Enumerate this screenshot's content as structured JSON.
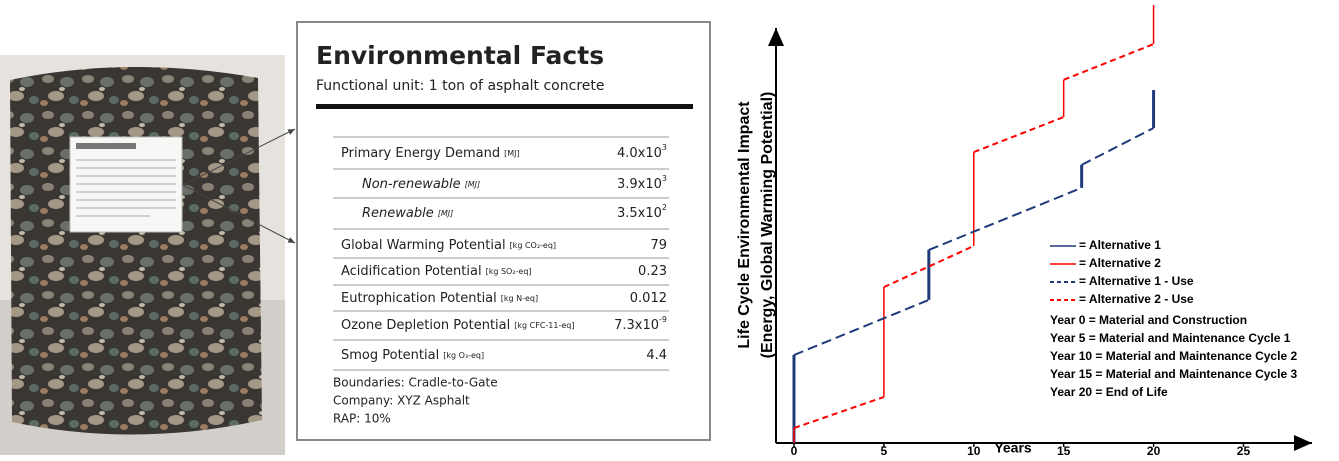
{
  "facts_label": {
    "title": "Environmental Facts",
    "subtitle": "Functional unit: 1 ton of asphalt concrete",
    "rows": [
      {
        "name": "Primary Energy Demand",
        "unit": "[MJ]",
        "value": "4.0x10",
        "exp": "3",
        "indent": false
      },
      {
        "name": "Non-renewable",
        "unit": "[MJ]",
        "value": "3.9x10",
        "exp": "3",
        "indent": true
      },
      {
        "name": "Renewable",
        "unit": "[MJ]",
        "value": "3.5x10",
        "exp": "2",
        "indent": true
      },
      {
        "name": "Global Warming Potential",
        "unit": "[kg CO₂-eq]",
        "value": "79",
        "indent": false
      },
      {
        "name": "Acidification Potential",
        "unit": "[kg SO₂-eq]",
        "value": "0.23",
        "indent": false
      },
      {
        "name": "Eutrophication Potential",
        "unit": "[kg N-eq]",
        "value": "0.012",
        "indent": false
      },
      {
        "name": "Ozone Depletion Potential",
        "unit": "[kg CFC-11-eq]",
        "value": "7.3x10",
        "exp": "-9",
        "indent": false
      },
      {
        "name": "Smog Potential",
        "unit": "[kg O₃-eq]",
        "value": "4.4",
        "indent": false
      }
    ],
    "footer": [
      "Boundaries: Cradle-to-Gate",
      "Company: XYZ Asphalt",
      "RAP: 10%"
    ]
  },
  "chart_data": {
    "type": "line",
    "xlabel": "Years",
    "ylabel": [
      "Life Cycle Environmental Impact",
      "(Energy, Global Warming Potential)"
    ],
    "xlim": [
      -1,
      28.7
    ],
    "xticks": [
      0,
      5,
      10,
      15,
      20,
      25
    ],
    "ylim": [
      0,
      120
    ],
    "series": [
      {
        "name": "= Alternative 1",
        "color": "#1f3a7a",
        "dash": false,
        "x": [
          0,
          0,
          null,
          7.5,
          7.5,
          null,
          16,
          16,
          null,
          20,
          20
        ],
        "values": [
          0,
          24.1,
          null,
          39.2,
          52.9,
          null,
          69.9,
          76.2,
          null,
          86.3,
          96.7
        ]
      },
      {
        "name": "= Alternative 2",
        "color": "#ff0000",
        "dash": false,
        "x": [
          0,
          0,
          null,
          5,
          5,
          null,
          10,
          10,
          null,
          15,
          15,
          null,
          20,
          20
        ],
        "values": [
          0,
          4.1,
          null,
          12.6,
          42.7,
          null,
          54,
          79.7,
          null,
          89.3,
          99.5,
          null,
          109.3,
          120
        ]
      },
      {
        "name": "= Alternative 1 - Use",
        "color": "#1f3a7a",
        "dash": true,
        "x": [
          0,
          7.5,
          null,
          7.5,
          16,
          null,
          16,
          20
        ],
        "values": [
          24.1,
          39.2,
          null,
          52.9,
          69.9,
          null,
          76.2,
          86.3
        ]
      },
      {
        "name": "= Alternative 2 - Use",
        "color": "#ff0000",
        "dash": true,
        "x": [
          0,
          5,
          null,
          5,
          10,
          null,
          10,
          15,
          null,
          15,
          20
        ],
        "values": [
          4.1,
          12.6,
          null,
          42.7,
          54,
          null,
          79.7,
          89.3,
          null,
          99.5,
          109.3
        ]
      }
    ],
    "annotations": [
      "Year 0 = Material and Construction",
      "Year 5 = Material and Maintenance Cycle 1",
      "Year 10 = Material and Maintenance Cycle 2",
      "Year 15 = Material and Maintenance Cycle 3",
      "Year 20 = End of Life"
    ]
  }
}
